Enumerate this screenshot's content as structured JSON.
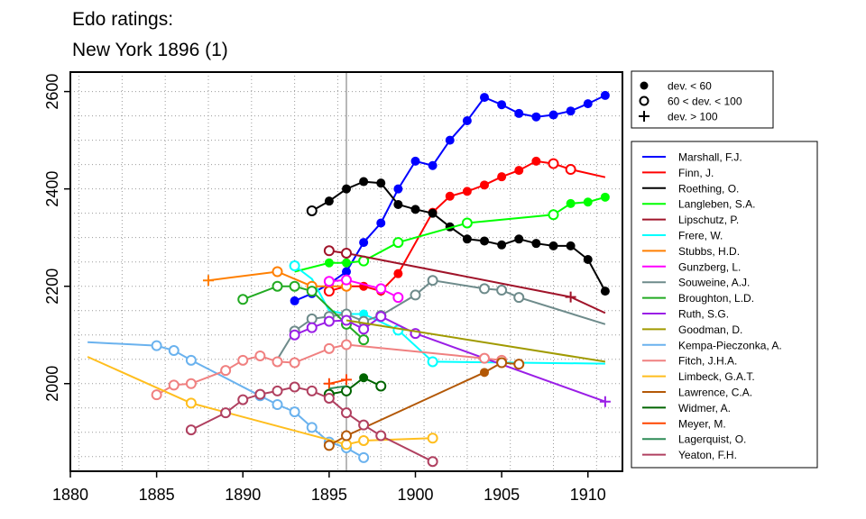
{
  "title_lines": [
    "Edo ratings:",
    "New York 1896 (1)"
  ],
  "chart_data": {
    "type": "line",
    "title": "Edo ratings: New York 1896 (1)",
    "xlabel": "",
    "ylabel": "",
    "xlim": [
      1880,
      1912
    ],
    "ylim": [
      1820,
      2640
    ],
    "xticks": [
      1880,
      1885,
      1890,
      1895,
      1900,
      1905,
      1910
    ],
    "yticks": [
      2000,
      2200,
      2400,
      2600
    ],
    "grid": true,
    "event_year": 1896,
    "legend_markers": [
      {
        "marker": "dot",
        "label": "dev. < 60"
      },
      {
        "marker": "circle",
        "label": "60 < dev. < 100"
      },
      {
        "marker": "plus",
        "label": "dev. > 100"
      }
    ],
    "legend_position": "right",
    "series": [
      {
        "name": "Marshall, F.J.",
        "color": "#0000ff",
        "points": [
          {
            "x": 1893,
            "y": 2170,
            "m": "dot"
          },
          {
            "x": 1894,
            "y": 2185,
            "m": "dot"
          },
          {
            "x": 1895,
            "y": 2205,
            "m": "dot"
          },
          {
            "x": 1896,
            "y": 2230,
            "m": "dot"
          },
          {
            "x": 1897,
            "y": 2290,
            "m": "dot"
          },
          {
            "x": 1898,
            "y": 2330,
            "m": "dot"
          },
          {
            "x": 1899,
            "y": 2400,
            "m": "dot"
          },
          {
            "x": 1900,
            "y": 2457,
            "m": "dot"
          },
          {
            "x": 1901,
            "y": 2448,
            "m": "dot"
          },
          {
            "x": 1902,
            "y": 2500,
            "m": "dot"
          },
          {
            "x": 1903,
            "y": 2540,
            "m": "dot"
          },
          {
            "x": 1904,
            "y": 2588,
            "m": "dot"
          },
          {
            "x": 1905,
            "y": 2573,
            "m": "dot"
          },
          {
            "x": 1906,
            "y": 2555,
            "m": "dot"
          },
          {
            "x": 1907,
            "y": 2548,
            "m": "dot"
          },
          {
            "x": 1908,
            "y": 2552,
            "m": "dot"
          },
          {
            "x": 1909,
            "y": 2560,
            "m": "dot"
          },
          {
            "x": 1910,
            "y": 2575,
            "m": "dot"
          },
          {
            "x": 1911,
            "y": 2592,
            "m": "dot"
          }
        ]
      },
      {
        "name": "Finn, J.",
        "color": "#ff0000",
        "points": [
          {
            "x": 1895,
            "y": 2190,
            "m": "circle"
          },
          {
            "x": 1896,
            "y": 2200,
            "m": "dot"
          },
          {
            "x": 1897,
            "y": 2200,
            "m": "dot"
          },
          {
            "x": 1898,
            "y": 2190,
            "m": "dot"
          },
          {
            "x": 1899,
            "y": 2226,
            "m": "dot"
          },
          {
            "x": 1901,
            "y": 2352,
            "m": "dot"
          },
          {
            "x": 1902,
            "y": 2385,
            "m": "dot"
          },
          {
            "x": 1903,
            "y": 2395,
            "m": "dot"
          },
          {
            "x": 1904,
            "y": 2408,
            "m": "dot"
          },
          {
            "x": 1905,
            "y": 2425,
            "m": "dot"
          },
          {
            "x": 1906,
            "y": 2438,
            "m": "dot"
          },
          {
            "x": 1907,
            "y": 2457,
            "m": "dot"
          },
          {
            "x": 1908,
            "y": 2452,
            "m": "circle"
          },
          {
            "x": 1909,
            "y": 2440,
            "m": "circle"
          },
          {
            "x": 1911,
            "y": 2424,
            "m": "none"
          }
        ]
      },
      {
        "name": "Roething, O.",
        "color": "#000000",
        "points": [
          {
            "x": 1894,
            "y": 2355,
            "m": "circle"
          },
          {
            "x": 1895,
            "y": 2375,
            "m": "dot"
          },
          {
            "x": 1896,
            "y": 2400,
            "m": "dot"
          },
          {
            "x": 1897,
            "y": 2415,
            "m": "dot"
          },
          {
            "x": 1898,
            "y": 2412,
            "m": "dot"
          },
          {
            "x": 1899,
            "y": 2368,
            "m": "dot"
          },
          {
            "x": 1900,
            "y": 2358,
            "m": "dot"
          },
          {
            "x": 1901,
            "y": 2350,
            "m": "dot"
          },
          {
            "x": 1902,
            "y": 2322,
            "m": "dot"
          },
          {
            "x": 1903,
            "y": 2297,
            "m": "dot"
          },
          {
            "x": 1904,
            "y": 2293,
            "m": "dot"
          },
          {
            "x": 1905,
            "y": 2285,
            "m": "dot"
          },
          {
            "x": 1906,
            "y": 2297,
            "m": "dot"
          },
          {
            "x": 1907,
            "y": 2288,
            "m": "dot"
          },
          {
            "x": 1908,
            "y": 2283,
            "m": "dot"
          },
          {
            "x": 1909,
            "y": 2283,
            "m": "dot"
          },
          {
            "x": 1910,
            "y": 2255,
            "m": "dot"
          },
          {
            "x": 1911,
            "y": 2190,
            "m": "dot"
          }
        ]
      },
      {
        "name": "Langleben, S.A.",
        "color": "#00ff00",
        "points": [
          {
            "x": 1893,
            "y": 2230,
            "m": "none"
          },
          {
            "x": 1895,
            "y": 2248,
            "m": "dot"
          },
          {
            "x": 1896,
            "y": 2248,
            "m": "dot"
          },
          {
            "x": 1897,
            "y": 2252,
            "m": "circle"
          },
          {
            "x": 1899,
            "y": 2290,
            "m": "circle"
          },
          {
            "x": 1903,
            "y": 2330,
            "m": "circle"
          },
          {
            "x": 1908,
            "y": 2347,
            "m": "circle"
          },
          {
            "x": 1909,
            "y": 2370,
            "m": "dot"
          },
          {
            "x": 1910,
            "y": 2373,
            "m": "dot"
          },
          {
            "x": 1911,
            "y": 2383,
            "m": "dot"
          }
        ]
      },
      {
        "name": "Lipschutz, P.",
        "color": "#a0142a",
        "points": [
          {
            "x": 1895,
            "y": 2273,
            "m": "circle"
          },
          {
            "x": 1896,
            "y": 2268,
            "m": "circle"
          },
          {
            "x": 1909,
            "y": 2178,
            "m": "plus"
          },
          {
            "x": 1911,
            "y": 2145,
            "m": "none"
          }
        ]
      },
      {
        "name": "Frere, W.",
        "color": "#00ffff",
        "points": [
          {
            "x": 1893,
            "y": 2242,
            "m": "circle"
          },
          {
            "x": 1894,
            "y": 2215,
            "m": "none"
          },
          {
            "x": 1895,
            "y": 2150,
            "m": "none"
          },
          {
            "x": 1896,
            "y": 2143,
            "m": "dot"
          },
          {
            "x": 1897,
            "y": 2143,
            "m": "dot"
          },
          {
            "x": 1899,
            "y": 2110,
            "m": "circle"
          },
          {
            "x": 1901,
            "y": 2045,
            "m": "circle"
          },
          {
            "x": 1911,
            "y": 2041,
            "m": "none"
          }
        ]
      },
      {
        "name": "Stubbs, H.D.",
        "color": "#ff7f00",
        "points": [
          {
            "x": 1888,
            "y": 2212,
            "m": "plus"
          },
          {
            "x": 1892,
            "y": 2230,
            "m": "circle"
          },
          {
            "x": 1894,
            "y": 2200,
            "m": "circle"
          },
          {
            "x": 1896,
            "y": 2200,
            "m": "circle"
          }
        ]
      },
      {
        "name": "Gunzberg, L.",
        "color": "#ff00ff",
        "points": [
          {
            "x": 1895,
            "y": 2210,
            "m": "circle"
          },
          {
            "x": 1896,
            "y": 2213,
            "m": "circle"
          },
          {
            "x": 1898,
            "y": 2195,
            "m": "circle"
          },
          {
            "x": 1899,
            "y": 2177,
            "m": "circle"
          }
        ]
      },
      {
        "name": "Souweine, A.J.",
        "color": "#6e8b8b",
        "points": [
          {
            "x": 1892,
            "y": 2050,
            "m": "none"
          },
          {
            "x": 1893,
            "y": 2108,
            "m": "circle"
          },
          {
            "x": 1894,
            "y": 2133,
            "m": "circle"
          },
          {
            "x": 1895,
            "y": 2138,
            "m": "circle"
          },
          {
            "x": 1896,
            "y": 2143,
            "m": "circle"
          },
          {
            "x": 1897,
            "y": 2128,
            "m": "circle"
          },
          {
            "x": 1898,
            "y": 2140,
            "m": "circle"
          },
          {
            "x": 1900,
            "y": 2182,
            "m": "circle"
          },
          {
            "x": 1901,
            "y": 2212,
            "m": "circle"
          },
          {
            "x": 1904,
            "y": 2195,
            "m": "circle"
          },
          {
            "x": 1905,
            "y": 2192,
            "m": "circle"
          },
          {
            "x": 1906,
            "y": 2177,
            "m": "circle"
          },
          {
            "x": 1911,
            "y": 2122,
            "m": "none"
          }
        ]
      },
      {
        "name": "Broughton, L.D.",
        "color": "#22aa22",
        "points": [
          {
            "x": 1890,
            "y": 2173,
            "m": "circle"
          },
          {
            "x": 1892,
            "y": 2200,
            "m": "circle"
          },
          {
            "x": 1893,
            "y": 2200,
            "m": "circle"
          },
          {
            "x": 1894,
            "y": 2190,
            "m": "circle"
          },
          {
            "x": 1896,
            "y": 2122,
            "m": "circle"
          },
          {
            "x": 1897,
            "y": 2090,
            "m": "circle"
          }
        ]
      },
      {
        "name": "Ruth, S.G.",
        "color": "#9a1ee6",
        "points": [
          {
            "x": 1893,
            "y": 2100,
            "m": "circle"
          },
          {
            "x": 1894,
            "y": 2115,
            "m": "circle"
          },
          {
            "x": 1895,
            "y": 2128,
            "m": "circle"
          },
          {
            "x": 1896,
            "y": 2130,
            "m": "circle"
          },
          {
            "x": 1897,
            "y": 2112,
            "m": "circle"
          },
          {
            "x": 1898,
            "y": 2138,
            "m": "circle"
          },
          {
            "x": 1900,
            "y": 2103,
            "m": "circle"
          },
          {
            "x": 1911,
            "y": 1963,
            "m": "plus"
          }
        ]
      },
      {
        "name": "Goodman, D.",
        "color": "#a09a00",
        "points": [
          {
            "x": 1896,
            "y": 2130,
            "m": "none"
          },
          {
            "x": 1911,
            "y": 2045,
            "m": "none"
          }
        ]
      },
      {
        "name": "Kempa-Pieczonka, A.",
        "color": "#6ab2ee",
        "points": [
          {
            "x": 1881,
            "y": 2085,
            "m": "none"
          },
          {
            "x": 1885,
            "y": 2078,
            "m": "circle"
          },
          {
            "x": 1886,
            "y": 2068,
            "m": "circle"
          },
          {
            "x": 1887,
            "y": 2048,
            "m": "circle"
          },
          {
            "x": 1891,
            "y": 1975,
            "m": "circle"
          },
          {
            "x": 1892,
            "y": 1957,
            "m": "circle"
          },
          {
            "x": 1893,
            "y": 1942,
            "m": "circle"
          },
          {
            "x": 1894,
            "y": 1910,
            "m": "circle"
          },
          {
            "x": 1895,
            "y": 1880,
            "m": "circle"
          },
          {
            "x": 1896,
            "y": 1868,
            "m": "circle"
          },
          {
            "x": 1897,
            "y": 1848,
            "m": "circle"
          }
        ]
      },
      {
        "name": "Fitch, J.H.A.",
        "color": "#f08080",
        "points": [
          {
            "x": 1885,
            "y": 1977,
            "m": "circle"
          },
          {
            "x": 1886,
            "y": 1997,
            "m": "circle"
          },
          {
            "x": 1887,
            "y": 2000,
            "m": "circle"
          },
          {
            "x": 1889,
            "y": 2027,
            "m": "circle"
          },
          {
            "x": 1890,
            "y": 2048,
            "m": "circle"
          },
          {
            "x": 1891,
            "y": 2057,
            "m": "circle"
          },
          {
            "x": 1892,
            "y": 2045,
            "m": "circle"
          },
          {
            "x": 1893,
            "y": 2043,
            "m": "circle"
          },
          {
            "x": 1895,
            "y": 2072,
            "m": "circle"
          },
          {
            "x": 1896,
            "y": 2080,
            "m": "circle"
          },
          {
            "x": 1904,
            "y": 2052,
            "m": "circle"
          },
          {
            "x": 1905,
            "y": 2048,
            "m": "circle"
          }
        ]
      },
      {
        "name": "Limbeck, G.A.T.",
        "color": "#ffbe1e",
        "points": [
          {
            "x": 1881,
            "y": 2055,
            "m": "none"
          },
          {
            "x": 1887,
            "y": 1960,
            "m": "circle"
          },
          {
            "x": 1896,
            "y": 1875,
            "m": "circle"
          },
          {
            "x": 1897,
            "y": 1883,
            "m": "circle"
          },
          {
            "x": 1901,
            "y": 1888,
            "m": "circle"
          }
        ]
      },
      {
        "name": "Lawrence, C.A.",
        "color": "#b35806",
        "points": [
          {
            "x": 1895,
            "y": 1873,
            "m": "circle"
          },
          {
            "x": 1896,
            "y": 1893,
            "m": "circle"
          },
          {
            "x": 1904,
            "y": 2023,
            "m": "dot"
          },
          {
            "x": 1905,
            "y": 2043,
            "m": "circle"
          },
          {
            "x": 1906,
            "y": 2040,
            "m": "circle"
          }
        ]
      },
      {
        "name": "Widmer, A.",
        "color": "#006400",
        "points": [
          {
            "x": 1895,
            "y": 1978,
            "m": "circle"
          },
          {
            "x": 1896,
            "y": 1985,
            "m": "circle"
          },
          {
            "x": 1897,
            "y": 2012,
            "m": "dot"
          },
          {
            "x": 1898,
            "y": 1995,
            "m": "circle"
          }
        ]
      },
      {
        "name": "Meyer, M.",
        "color": "#ff4500",
        "points": [
          {
            "x": 1895,
            "y": 2000,
            "m": "plus"
          },
          {
            "x": 1896,
            "y": 2008,
            "m": "plus"
          }
        ]
      },
      {
        "name": "Lagerquist, O.",
        "color": "#2e8b57",
        "points": [
          {
            "x": 1895,
            "y": 1990,
            "m": "none"
          },
          {
            "x": 1896,
            "y": 1995,
            "m": "none"
          }
        ]
      },
      {
        "name": "Yeaton, F.H.",
        "color": "#b04060",
        "points": [
          {
            "x": 1887,
            "y": 1905,
            "m": "circle"
          },
          {
            "x": 1889,
            "y": 1940,
            "m": "circle"
          },
          {
            "x": 1890,
            "y": 1967,
            "m": "circle"
          },
          {
            "x": 1891,
            "y": 1978,
            "m": "circle"
          },
          {
            "x": 1892,
            "y": 1985,
            "m": "circle"
          },
          {
            "x": 1893,
            "y": 1993,
            "m": "circle"
          },
          {
            "x": 1894,
            "y": 1985,
            "m": "circle"
          },
          {
            "x": 1895,
            "y": 1970,
            "m": "circle"
          },
          {
            "x": 1896,
            "y": 1940,
            "m": "circle"
          },
          {
            "x": 1897,
            "y": 1915,
            "m": "circle"
          },
          {
            "x": 1898,
            "y": 1893,
            "m": "circle"
          },
          {
            "x": 1901,
            "y": 1840,
            "m": "circle"
          }
        ]
      }
    ]
  }
}
